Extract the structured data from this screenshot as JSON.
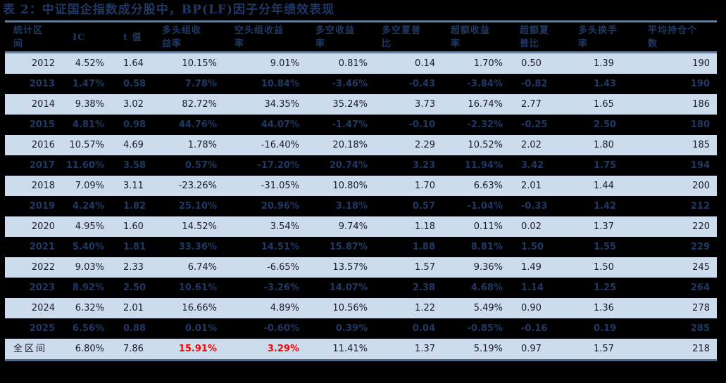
{
  "title": "表 2：中证国企指数成分股中，BP(LF)因子分年绩效表现",
  "colors": {
    "title": "#1f3864",
    "header_text": "#1f3864",
    "row_light_bg": "#cddcec",
    "row_dark_bg": "#000000",
    "rule": "#5b7fae",
    "highlight": "#ff0000"
  },
  "table": {
    "headers": [
      {
        "line1": "统计区",
        "line2": "间"
      },
      {
        "line1": "IC",
        "line2": ""
      },
      {
        "line1": "t 值",
        "line2": ""
      },
      {
        "line1": "多头组收",
        "line2": "益率"
      },
      {
        "line1": "空头组收益",
        "line2": "率"
      },
      {
        "line1": "多空收益",
        "line2": "率"
      },
      {
        "line1": "多空夏普",
        "line2": "比"
      },
      {
        "line1": "超额收益",
        "line2": "率"
      },
      {
        "line1": "超额夏",
        "line2": "普比"
      },
      {
        "line1": "多头换手",
        "line2": "率"
      },
      {
        "line1": "平均持仓个",
        "line2": "数"
      }
    ],
    "rows": [
      [
        "2012",
        "4.52%",
        "1.64",
        "10.15%",
        "9.01%",
        "0.81%",
        "0.14",
        "1.70%",
        "0.50",
        "1.39",
        "190"
      ],
      [
        "2013",
        "1.47%",
        "0.58",
        "7.78%",
        "10.84%",
        "-3.46%",
        "-0.43",
        "-3.84%",
        "-0.82",
        "1.43",
        "190"
      ],
      [
        "2014",
        "9.38%",
        "3.02",
        "82.72%",
        "34.35%",
        "35.24%",
        "3.73",
        "16.74%",
        "2.77",
        "1.65",
        "186"
      ],
      [
        "2015",
        "4.81%",
        "0.98",
        "44.76%",
        "44.07%",
        "-1.47%",
        "-0.10",
        "-2.32%",
        "-0.25",
        "2.50",
        "180"
      ],
      [
        "2016",
        "10.57%",
        "4.69",
        "1.78%",
        "-16.40%",
        "20.18%",
        "2.29",
        "10.52%",
        "2.02",
        "1.80",
        "185"
      ],
      [
        "2017",
        "11.60%",
        "3.58",
        "0.57%",
        "-17.20%",
        "20.74%",
        "3.23",
        "11.94%",
        "3.42",
        "1.75",
        "194"
      ],
      [
        "2018",
        "7.09%",
        "3.11",
        "-23.26%",
        "-31.05%",
        "10.80%",
        "1.70",
        "6.63%",
        "2.01",
        "1.44",
        "200"
      ],
      [
        "2019",
        "4.24%",
        "1.82",
        "25.10%",
        "20.96%",
        "3.18%",
        "0.57",
        "-1.04%",
        "-0.33",
        "1.42",
        "212"
      ],
      [
        "2020",
        "4.95%",
        "1.60",
        "14.52%",
        "3.54%",
        "9.74%",
        "1.18",
        "0.11%",
        "0.02",
        "1.37",
        "220"
      ],
      [
        "2021",
        "5.40%",
        "1.81",
        "33.36%",
        "14.51%",
        "15.87%",
        "1.88",
        "8.81%",
        "1.50",
        "1.55",
        "229"
      ],
      [
        "2022",
        "9.03%",
        "2.33",
        "6.74%",
        "-6.65%",
        "13.57%",
        "1.57",
        "9.36%",
        "1.49",
        "1.50",
        "245"
      ],
      [
        "2023",
        "8.92%",
        "2.50",
        "10.61%",
        "-3.26%",
        "14.07%",
        "2.38",
        "4.68%",
        "1.14",
        "1.25",
        "264"
      ],
      [
        "2024",
        "6.32%",
        "2.01",
        "16.66%",
        "4.89%",
        "10.56%",
        "1.22",
        "5.49%",
        "0.90",
        "1.36",
        "278"
      ],
      [
        "2025",
        "6.56%",
        "0.88",
        "0.01%",
        "-0.60%",
        "0.39%",
        "0.04",
        "-0.85%",
        "-0.16",
        "0.19",
        "285"
      ]
    ],
    "total": [
      "全区间",
      "6.80%",
      "7.86",
      "15.91%",
      "3.29%",
      "11.41%",
      "1.37",
      "5.19%",
      "0.97",
      "1.57",
      "218"
    ],
    "total_highlighted_columns": [
      3,
      4
    ]
  }
}
